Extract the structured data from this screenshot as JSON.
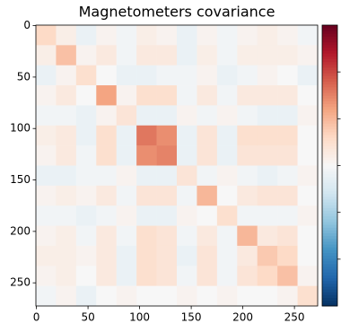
{
  "chart_data": {
    "type": "heatmap",
    "title": "Magnetometers covariance",
    "xlim": [
      -0.5,
      272.5
    ],
    "ylim": [
      -0.5,
      272.5
    ],
    "xticks": [
      0,
      50,
      100,
      150,
      200,
      250
    ],
    "yticks": [
      0,
      50,
      100,
      150,
      200,
      250
    ],
    "colormap": "RdBu_r",
    "clim": [
      -3,
      3
    ],
    "colorbar_ticks": [
      -2,
      -1,
      0,
      1,
      2
    ],
    "matrix": [
      [
        0.6,
        0.2,
        -0.2,
        0.1,
        -0.1,
        0.2,
        0.1,
        -0.2,
        0.1,
        -0.1,
        0.1,
        0.2,
        0.1,
        -0.1
      ],
      [
        0.2,
        0.9,
        0.1,
        0.3,
        -0.1,
        0.3,
        0.3,
        -0.2,
        0.2,
        -0.1,
        0.2,
        0.2,
        0.2,
        0.1
      ],
      [
        -0.2,
        0.1,
        0.5,
        0.0,
        -0.2,
        -0.2,
        -0.1,
        -0.1,
        0.1,
        -0.2,
        -0.1,
        0.1,
        0.0,
        -0.2
      ],
      [
        0.1,
        0.3,
        0.0,
        1.2,
        0.1,
        0.5,
        0.5,
        -0.1,
        0.3,
        -0.1,
        0.3,
        0.3,
        0.3,
        0.0
      ],
      [
        -0.1,
        -0.1,
        -0.2,
        0.1,
        0.4,
        -0.2,
        -0.2,
        0.1,
        -0.1,
        0.1,
        -0.1,
        -0.2,
        -0.2,
        0.1
      ],
      [
        0.2,
        0.3,
        -0.2,
        0.5,
        -0.2,
        1.6,
        1.4,
        -0.2,
        0.4,
        -0.2,
        0.5,
        0.5,
        0.5,
        0.0
      ],
      [
        0.1,
        0.3,
        -0.1,
        0.5,
        -0.2,
        1.4,
        1.5,
        -0.2,
        0.4,
        -0.2,
        0.4,
        0.4,
        0.4,
        0.0
      ],
      [
        -0.2,
        -0.2,
        -0.1,
        -0.1,
        0.1,
        -0.2,
        -0.2,
        0.4,
        -0.1,
        0.1,
        -0.1,
        -0.2,
        -0.1,
        0.1
      ],
      [
        0.1,
        0.2,
        0.1,
        0.3,
        -0.1,
        0.4,
        0.4,
        -0.1,
        1.0,
        0.0,
        0.3,
        0.4,
        0.4,
        0.0
      ],
      [
        -0.1,
        -0.1,
        -0.2,
        -0.1,
        0.1,
        -0.2,
        -0.2,
        0.1,
        0.0,
        0.5,
        -0.1,
        -0.1,
        -0.1,
        0.1
      ],
      [
        0.1,
        0.2,
        -0.1,
        0.3,
        -0.1,
        0.5,
        0.4,
        -0.1,
        0.3,
        -0.1,
        1.0,
        0.3,
        0.4,
        0.0
      ],
      [
        0.2,
        0.2,
        0.1,
        0.3,
        -0.2,
        0.5,
        0.4,
        -0.2,
        0.4,
        -0.1,
        0.3,
        0.8,
        0.6,
        0.0
      ],
      [
        0.1,
        0.2,
        0.0,
        0.3,
        -0.2,
        0.5,
        0.4,
        -0.1,
        0.4,
        -0.1,
        0.4,
        0.6,
        0.9,
        0.1
      ],
      [
        -0.1,
        0.1,
        -0.2,
        0.0,
        0.1,
        0.0,
        0.0,
        0.1,
        0.0,
        0.1,
        0.0,
        0.0,
        0.1,
        0.5
      ]
    ]
  }
}
